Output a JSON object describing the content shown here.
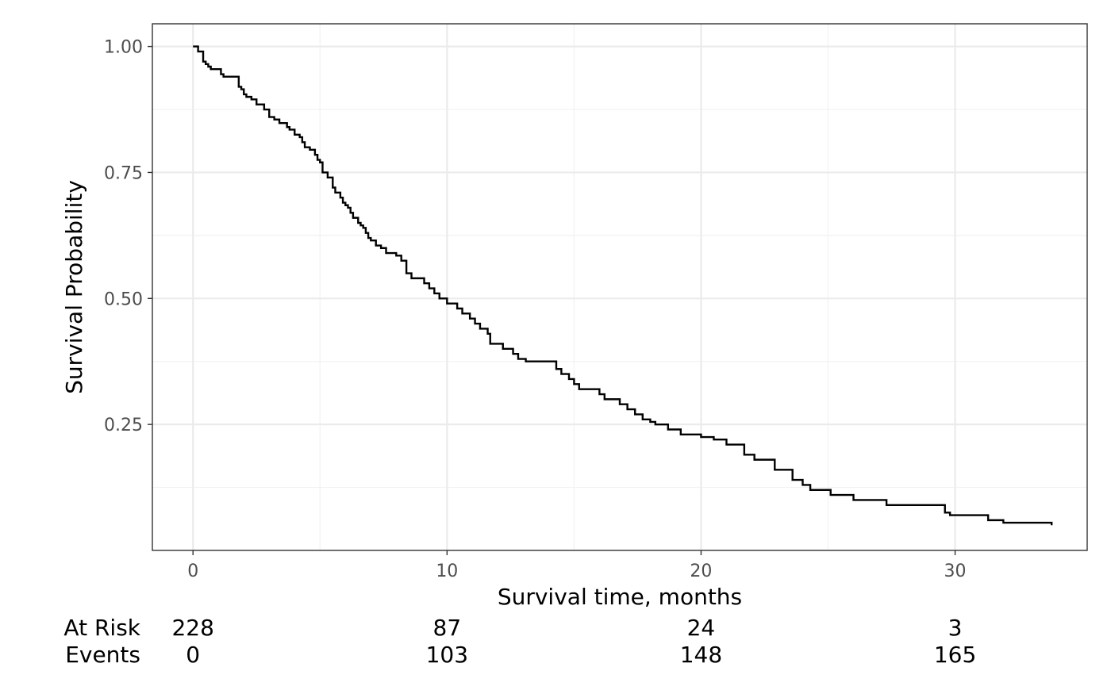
{
  "chart_data": {
    "type": "line",
    "title": "",
    "xlabel": "Survival time, months",
    "ylabel": "Survival Probability",
    "xlim": [
      -1.6,
      35.2
    ],
    "ylim": [
      0.0,
      1.045
    ],
    "x_ticks": [
      0,
      10,
      20,
      30
    ],
    "x_tick_labels": [
      "0",
      "10",
      "20",
      "30"
    ],
    "y_ticks": [
      0.25,
      0.5,
      0.75,
      1.0
    ],
    "y_tick_labels": [
      "0.25",
      "0.50",
      "0.75",
      "1.00"
    ],
    "grid": true,
    "legend": "none",
    "series": [
      {
        "x": [
          0,
          0.2,
          0.4,
          0.5,
          0.6,
          0.7,
          1.1,
          1.2,
          1.8,
          1.9,
          2.0,
          2.1,
          2.3,
          2.5,
          2.8,
          3.0,
          3.2,
          3.4,
          3.7,
          3.8,
          4.0,
          4.2,
          4.3,
          4.4,
          4.6,
          4.8,
          4.9,
          5.0,
          5.1,
          5.3,
          5.5,
          5.6,
          5.8,
          5.9,
          6.0,
          6.1,
          6.2,
          6.3,
          6.5,
          6.6,
          6.7,
          6.8,
          6.9,
          7.0,
          7.2,
          7.4,
          7.6,
          8.0,
          8.2,
          8.4,
          8.6,
          9.1,
          9.3,
          9.5,
          9.7,
          10.0,
          10.4,
          10.6,
          10.9,
          11.1,
          11.3,
          11.6,
          11.7,
          12.2,
          12.6,
          12.8,
          13.1,
          14.3,
          14.5,
          14.8,
          15.0,
          15.2,
          16.0,
          16.2,
          16.8,
          17.1,
          17.4,
          17.7,
          18.0,
          18.2,
          18.7,
          19.2,
          20.0,
          20.5,
          21.0,
          21.7,
          22.1,
          22.9,
          23.6,
          24.0,
          24.3,
          25.1,
          26.0,
          27.3,
          29.6,
          29.8,
          31.3,
          31.9,
          33.8
        ],
        "y": [
          1.0,
          0.99,
          0.97,
          0.965,
          0.96,
          0.955,
          0.945,
          0.94,
          0.92,
          0.915,
          0.905,
          0.9,
          0.895,
          0.885,
          0.875,
          0.86,
          0.855,
          0.848,
          0.84,
          0.835,
          0.825,
          0.82,
          0.81,
          0.8,
          0.795,
          0.785,
          0.775,
          0.77,
          0.75,
          0.74,
          0.72,
          0.71,
          0.7,
          0.69,
          0.685,
          0.68,
          0.67,
          0.66,
          0.65,
          0.645,
          0.64,
          0.63,
          0.62,
          0.615,
          0.605,
          0.6,
          0.59,
          0.585,
          0.575,
          0.55,
          0.54,
          0.53,
          0.52,
          0.51,
          0.5,
          0.49,
          0.48,
          0.47,
          0.46,
          0.45,
          0.44,
          0.43,
          0.41,
          0.4,
          0.39,
          0.38,
          0.375,
          0.36,
          0.35,
          0.34,
          0.33,
          0.32,
          0.31,
          0.3,
          0.29,
          0.28,
          0.27,
          0.26,
          0.255,
          0.25,
          0.24,
          0.23,
          0.225,
          0.22,
          0.21,
          0.19,
          0.18,
          0.16,
          0.14,
          0.13,
          0.12,
          0.11,
          0.1,
          0.09,
          0.075,
          0.07,
          0.06,
          0.055,
          0.05
        ]
      }
    ],
    "risk_table": {
      "row_labels": [
        "At Risk",
        "Events"
      ],
      "times": [
        0,
        10,
        20,
        30
      ],
      "at_risk": [
        228,
        87,
        24,
        3
      ],
      "events": [
        0,
        103,
        148,
        165
      ]
    }
  }
}
